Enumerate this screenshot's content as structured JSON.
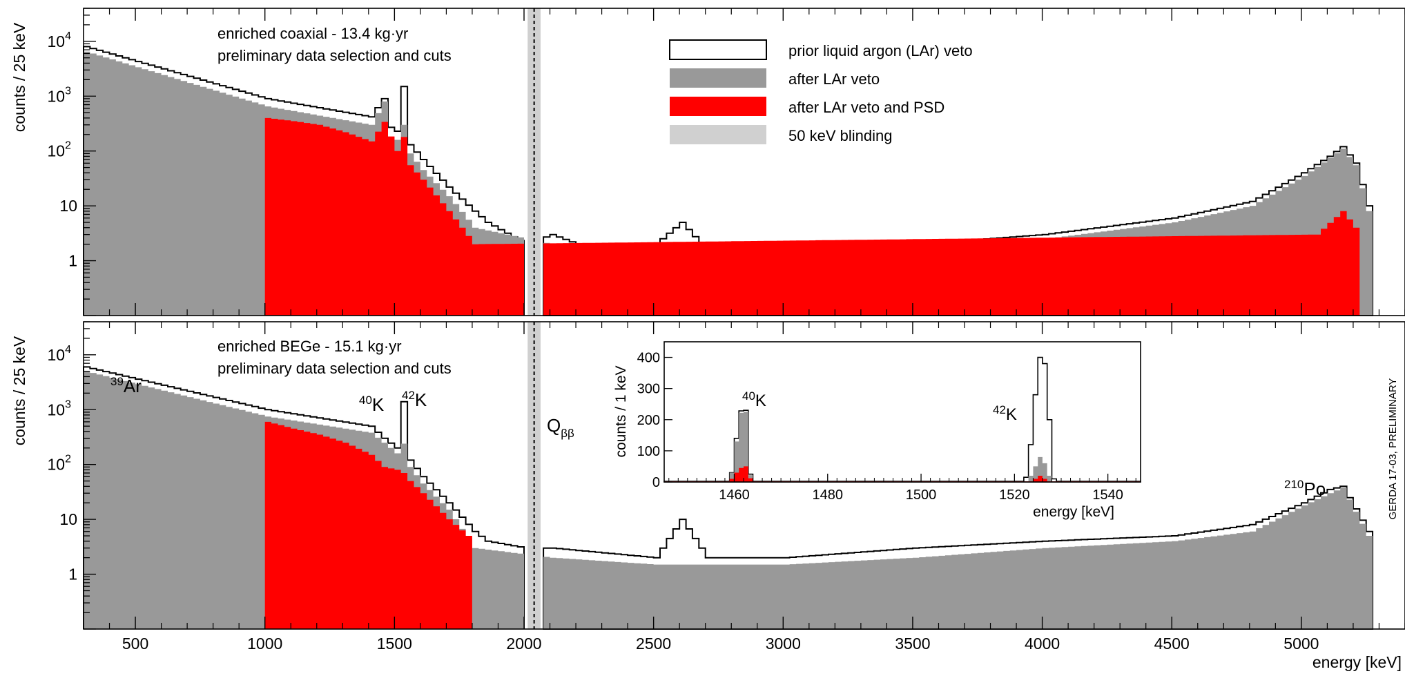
{
  "chart_data": {
    "type": "histogram",
    "x_axis": {
      "label": "energy [keV]",
      "range": [
        300,
        5400
      ],
      "ticks": [
        500,
        1000,
        1500,
        2000,
        2500,
        3000,
        3500,
        4000,
        4500,
        5000
      ],
      "tick_labels": [
        "500",
        "1000",
        "1500",
        "2000",
        "2500",
        "3000",
        "3500",
        "4000",
        "4500",
        "5000"
      ]
    },
    "y_axis": {
      "label": "counts / 25 keV",
      "scale": "log",
      "range": [
        0.1,
        40000
      ],
      "ticks": [
        1,
        10,
        100,
        1000,
        10000
      ],
      "tick_labels": {
        "d4": "10",
        "e4": "4",
        "d3": "10",
        "e3": "3",
        "d2": "10",
        "e2": "2",
        "t10": "10",
        "t1": "1"
      }
    },
    "legend": {
      "placement": "top-middle",
      "entries": [
        {
          "label": "prior liquid argon (LAr) veto",
          "color": "#ffffff"
        },
        {
          "label": "after LAr veto",
          "color": "#999999"
        },
        {
          "label": "after LAr veto and PSD",
          "color": "#ff0000"
        },
        {
          "label": "50 keV blinding",
          "color": "#d0d0d0"
        }
      ]
    },
    "blinding_window_keV": [
      2014,
      2064
    ],
    "q_bb": {
      "value": 2039,
      "label": "Q",
      "sub": "ββ"
    },
    "panels": [
      {
        "title": "enriched coaxial - 13.4 kg·yr",
        "subtitle": "preliminary data selection and cuts",
        "bin_width_keV": 25,
        "series": [
          {
            "name": "prior liquid argon (LAr) veto",
            "x": [
              300,
              1000,
              1400,
              1450,
              1475,
              1500,
              1525,
              1550,
              1600,
              1700,
              1800,
              1850,
              2000,
              2100,
              2200,
              2400,
              2500,
              2600,
              2700,
              3000,
              3500,
              4000,
              4500,
              4800,
              5000,
              5100,
              5150,
              5200,
              5250
            ],
            "y": [
              8000,
              900,
              420,
              900,
              270,
              230,
              1500,
              130,
              70,
              22,
              8,
              5,
              2,
              3,
              2,
              2,
              2,
              5,
              1.5,
              2,
              2,
              3,
              6,
              12,
              40,
              80,
              120,
              60,
              10
            ]
          },
          {
            "name": "after LAr veto",
            "x": [
              300,
              1000,
              1400,
              1450,
              1475,
              1500,
              1525,
              1550,
              1600,
              1700,
              1800,
              2100,
              2500,
              2600,
              2700,
              3000,
              3500,
              4000,
              4500,
              4800,
              5000,
              5100,
              5150,
              5200,
              5250
            ],
            "y": [
              6500,
              650,
              300,
              800,
              180,
              160,
              300,
              90,
              45,
              15,
              4,
              2,
              1.5,
              2,
              1.5,
              1.5,
              1.5,
              2.5,
              5,
              10,
              35,
              75,
              110,
              55,
              8
            ]
          },
          {
            "name": "after LAr veto and PSD",
            "x": [
              1000,
              1100,
              1200,
              1300,
              1400,
              1450,
              1500,
              1525,
              1550,
              1600,
              1700,
              1800,
              5050,
              5150,
              5200
            ],
            "y": [
              400,
              350,
              300,
              220,
              150,
              340,
              100,
              180,
              55,
              30,
              8,
              2,
              3,
              8,
              4
            ]
          }
        ]
      },
      {
        "title": "enriched BEGe - 15.1 kg·yr",
        "subtitle": "preliminary data selection and cuts",
        "bin_width_keV": 25,
        "annotations": [
          {
            "sup": "39",
            "base": "Ar"
          },
          {
            "sup": "40",
            "base": "K"
          },
          {
            "sup": "42",
            "base": "K"
          },
          {
            "sup": "210",
            "base": "Po"
          }
        ],
        "series": [
          {
            "name": "prior liquid argon (LAr) veto",
            "x": [
              300,
              1000,
              1400,
              1450,
              1500,
              1525,
              1550,
              1600,
              1700,
              1800,
              1850,
              2000,
              2100,
              2500,
              2600,
              2700,
              3000,
              3500,
              4000,
              4500,
              4800,
              5000,
              5100,
              5150,
              5250
            ],
            "y": [
              6000,
              1000,
              500,
              300,
              200,
              1400,
              120,
              60,
              20,
              6,
              4,
              3,
              3,
              2,
              10,
              2,
              2,
              3,
              4,
              5,
              8,
              20,
              35,
              40,
              6
            ]
          },
          {
            "name": "after LAr veto",
            "x": [
              300,
              1000,
              1400,
              1450,
              1500,
              1525,
              1550,
              1600,
              1700,
              1800,
              2100,
              2500,
              2600,
              2700,
              3000,
              3500,
              4000,
              4500,
              4800,
              5000,
              5100,
              5150,
              5250
            ],
            "y": [
              5000,
              750,
              380,
              250,
              160,
              240,
              90,
              45,
              15,
              3,
              2,
              1.5,
              1.5,
              1.5,
              1.5,
              2,
              3,
              4,
              6,
              18,
              30,
              38,
              5
            ]
          },
          {
            "name": "after LAr veto and PSD",
            "x": [
              1000,
              1100,
              1200,
              1300,
              1400,
              1450,
              1500,
              1525,
              1550,
              1600,
              1700,
              1775
            ],
            "y": [
              600,
              450,
              350,
              250,
              150,
              90,
              80,
              70,
              50,
              30,
              10,
              5
            ]
          }
        ]
      }
    ],
    "inset": {
      "type": "histogram",
      "x_axis": {
        "label": "energy [keV]",
        "range": [
          1445,
          1547
        ],
        "ticks": [
          1460,
          1480,
          1500,
          1520,
          1540
        ],
        "tick_labels": [
          "1460",
          "1480",
          "1500",
          "1520",
          "1540"
        ]
      },
      "y_axis": {
        "label": "counts / 1 keV",
        "range": [
          0,
          450
        ],
        "ticks": [
          0,
          100,
          200,
          300,
          400
        ],
        "tick_labels": [
          "0",
          "100",
          "200",
          "300",
          "400"
        ]
      },
      "annotations": [
        {
          "sup": "40",
          "base": "K"
        },
        {
          "sup": "42",
          "base": "K"
        }
      ],
      "series": [
        {
          "name": "prior liquid argon (LAr) veto",
          "x": [
            1459,
            1460,
            1461,
            1462,
            1463,
            1522,
            1523,
            1524,
            1525,
            1526,
            1527,
            1528
          ],
          "y": [
            30,
            140,
            228,
            230,
            25,
            15,
            120,
            280,
            400,
            380,
            200,
            10
          ]
        },
        {
          "name": "after LAr veto",
          "x": [
            1459,
            1460,
            1461,
            1462,
            1463,
            1523,
            1524,
            1525,
            1526,
            1527
          ],
          "y": [
            30,
            130,
            222,
            225,
            22,
            20,
            50,
            80,
            60,
            20
          ]
        },
        {
          "name": "after LAr veto and PSD",
          "x": [
            1459,
            1460,
            1461,
            1462,
            1463,
            1524,
            1525,
            1526
          ],
          "y": [
            10,
            30,
            45,
            50,
            12,
            10,
            20,
            10
          ]
        }
      ]
    },
    "side_label": "GERDA 17-03, PRELIMINARY"
  }
}
